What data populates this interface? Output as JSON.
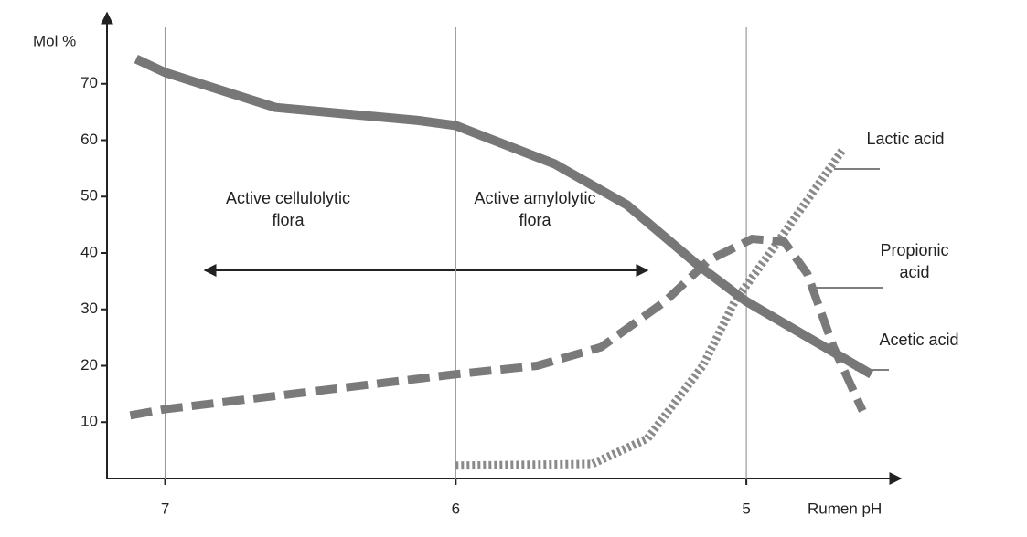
{
  "chart_data": {
    "type": "line",
    "ylabel": "Mol %",
    "xlabel": "Rumen pH",
    "xlim": [
      7.2,
      4.5
    ],
    "xticks": [
      7,
      6,
      5
    ],
    "ylim": [
      0,
      80
    ],
    "yticks": [
      10,
      20,
      30,
      40,
      50,
      60,
      70
    ],
    "grid": "x",
    "annotations": [
      "Active cellulolytic flora",
      "Active amylolytic flora"
    ],
    "series": [
      {
        "name": "Lactic acid",
        "color": "#8a8a8a",
        "style": "dotted",
        "x": [
          6.0,
          5.53,
          5.34,
          5.15,
          5.04,
          4.88,
          4.67
        ],
        "values": [
          2.3,
          2.6,
          7.1,
          20,
          31.4,
          42.8,
          58.2
        ]
      },
      {
        "name": "Propionic acid",
        "color": "#7a7a7a",
        "style": "dashed",
        "x": [
          7.12,
          7.0,
          6.0,
          5.72,
          5.5,
          5.28,
          5.13,
          4.98,
          4.87,
          4.79,
          4.7,
          4.6
        ],
        "values": [
          11.2,
          12.3,
          18.5,
          20,
          23.3,
          31.4,
          38.7,
          42.5,
          42,
          36.3,
          23.3,
          12
        ]
      },
      {
        "name": "Acetic acid",
        "color": "#777777",
        "style": "solid",
        "x": [
          7.1,
          7.0,
          6.62,
          6.13,
          6.0,
          5.66,
          5.41,
          5.17,
          5.0,
          4.57
        ],
        "values": [
          74.4,
          72,
          65.8,
          63.5,
          62.6,
          55.8,
          48.5,
          38,
          31.4,
          18.5
        ]
      }
    ]
  }
}
